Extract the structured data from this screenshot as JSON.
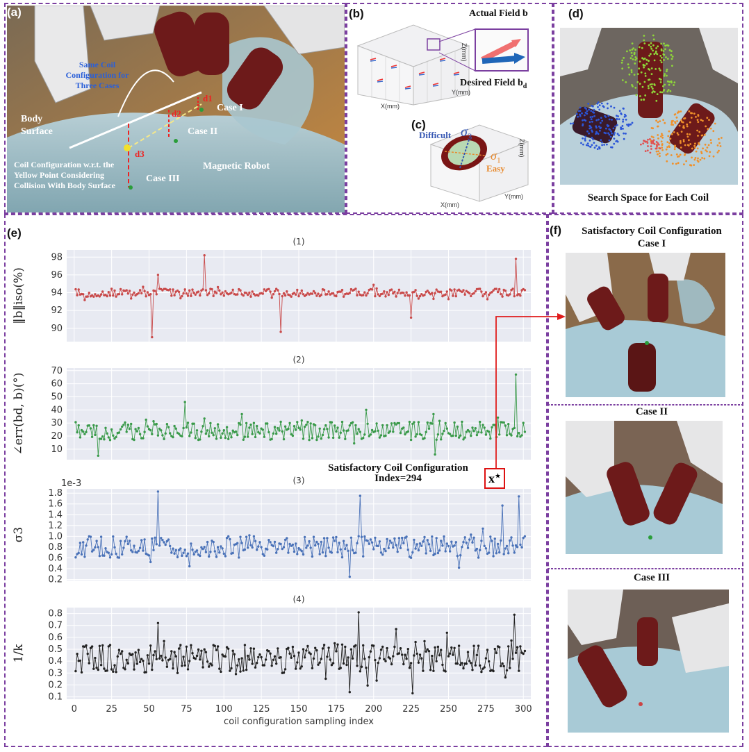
{
  "panels": {
    "a": {
      "label": "(a)",
      "same_coil": "Same Coil Configuration for Three Cases",
      "body_surface": "Body Surface",
      "coil_config_note": "Coil Configuration w.r.t. the Yellow Point Considering Collision With Body Surface",
      "magnetic_robot": "Magnetic Robot",
      "case1": "Case I",
      "case2": "Case II",
      "case3": "Case III",
      "d1": "d1",
      "d2": "d2",
      "d3": "d3"
    },
    "b": {
      "label": "(b)",
      "actual_field": "Actual Field b",
      "desired_field": "Desired Field b",
      "desired_sub": "d",
      "x_axis": "X(mm)",
      "y_axis": "Y(mm)",
      "z_axis": "Z(mm)"
    },
    "c": {
      "label": "(c)",
      "difficult": "Difficult",
      "easy": "Easy",
      "sigma3": "σ",
      "sigma3_sub": "3",
      "sigma1": "σ",
      "sigma1_sub": "1",
      "x_axis": "X(mm)",
      "y_axis": "Y(mm)",
      "z_axis": "Z(mm)"
    },
    "d": {
      "label": "(d)",
      "caption": "Search Space for Each Coil"
    },
    "e": {
      "label": "(e)",
      "satisfactory_title": "Satisfactory Coil Configuration",
      "satisfactory_index": "Index=294",
      "x_star": "x"
    },
    "f": {
      "label": "(f)",
      "title": "Satisfactory Coil Configuration",
      "case1": "Case I",
      "case2": "Case II",
      "case3": "Case III"
    }
  },
  "chart_data": [
    {
      "type": "line",
      "subtitle": "(1)",
      "ylabel": "‖b‖iso(%)",
      "xlabel": "",
      "xlim": [
        -5,
        305
      ],
      "ylim": [
        88.5,
        98.8
      ],
      "yticks": [
        90,
        92,
        94,
        96,
        98
      ],
      "color": "#c94a4a",
      "baseline": 94.0,
      "spread": 0.45,
      "spikes": [
        [
          51,
          89.0
        ],
        [
          55,
          96.0
        ],
        [
          86,
          98.2
        ],
        [
          137,
          89.6
        ],
        [
          224,
          91.2
        ],
        [
          294,
          97.8
        ]
      ]
    },
    {
      "type": "line",
      "subtitle": "(2)",
      "ylabel": "∠err(bd, b)(°)",
      "xlabel": "",
      "xlim": [
        -5,
        305
      ],
      "ylim": [
        2,
        72
      ],
      "yticks": [
        10,
        20,
        30,
        40,
        50,
        60,
        70
      ],
      "color": "#3a9a4a",
      "baseline": 24,
      "spread": 7,
      "spikes": [
        [
          15,
          5
        ],
        [
          73,
          46
        ],
        [
          194,
          40
        ],
        [
          240,
          6
        ],
        [
          294,
          67
        ]
      ]
    },
    {
      "type": "line",
      "subtitle": "(3)",
      "ylabel": "σ3",
      "scale_note": "1e-3",
      "xlabel": "",
      "xlim": [
        -5,
        305
      ],
      "ylim": [
        0.18,
        1.88
      ],
      "yticks": [
        0.2,
        0.4,
        0.6,
        0.8,
        1.0,
        1.2,
        1.4,
        1.6,
        1.8
      ],
      "color": "#4a72b8",
      "baseline": 0.8,
      "spread": 0.2,
      "spikes": [
        [
          55,
          1.83
        ],
        [
          190,
          1.75
        ],
        [
          183,
          0.25
        ],
        [
          285,
          1.57
        ],
        [
          296,
          1.74
        ]
      ]
    },
    {
      "type": "line",
      "subtitle": "(4)",
      "ylabel": "1/k",
      "xlabel": "coil configuration sampling index",
      "xlim": [
        -5,
        305
      ],
      "ylim": [
        0.08,
        0.85
      ],
      "yticks": [
        0.1,
        0.2,
        0.3,
        0.4,
        0.5,
        0.6,
        0.7,
        0.8
      ],
      "xticks": [
        0,
        25,
        50,
        75,
        100,
        125,
        150,
        175,
        200,
        225,
        250,
        275,
        300
      ],
      "color": "#222222",
      "baseline": 0.42,
      "spread": 0.12,
      "spikes": [
        [
          55,
          0.72
        ],
        [
          189,
          0.81
        ],
        [
          183,
          0.14
        ],
        [
          225,
          0.13
        ],
        [
          293,
          0.79
        ]
      ]
    }
  ]
}
